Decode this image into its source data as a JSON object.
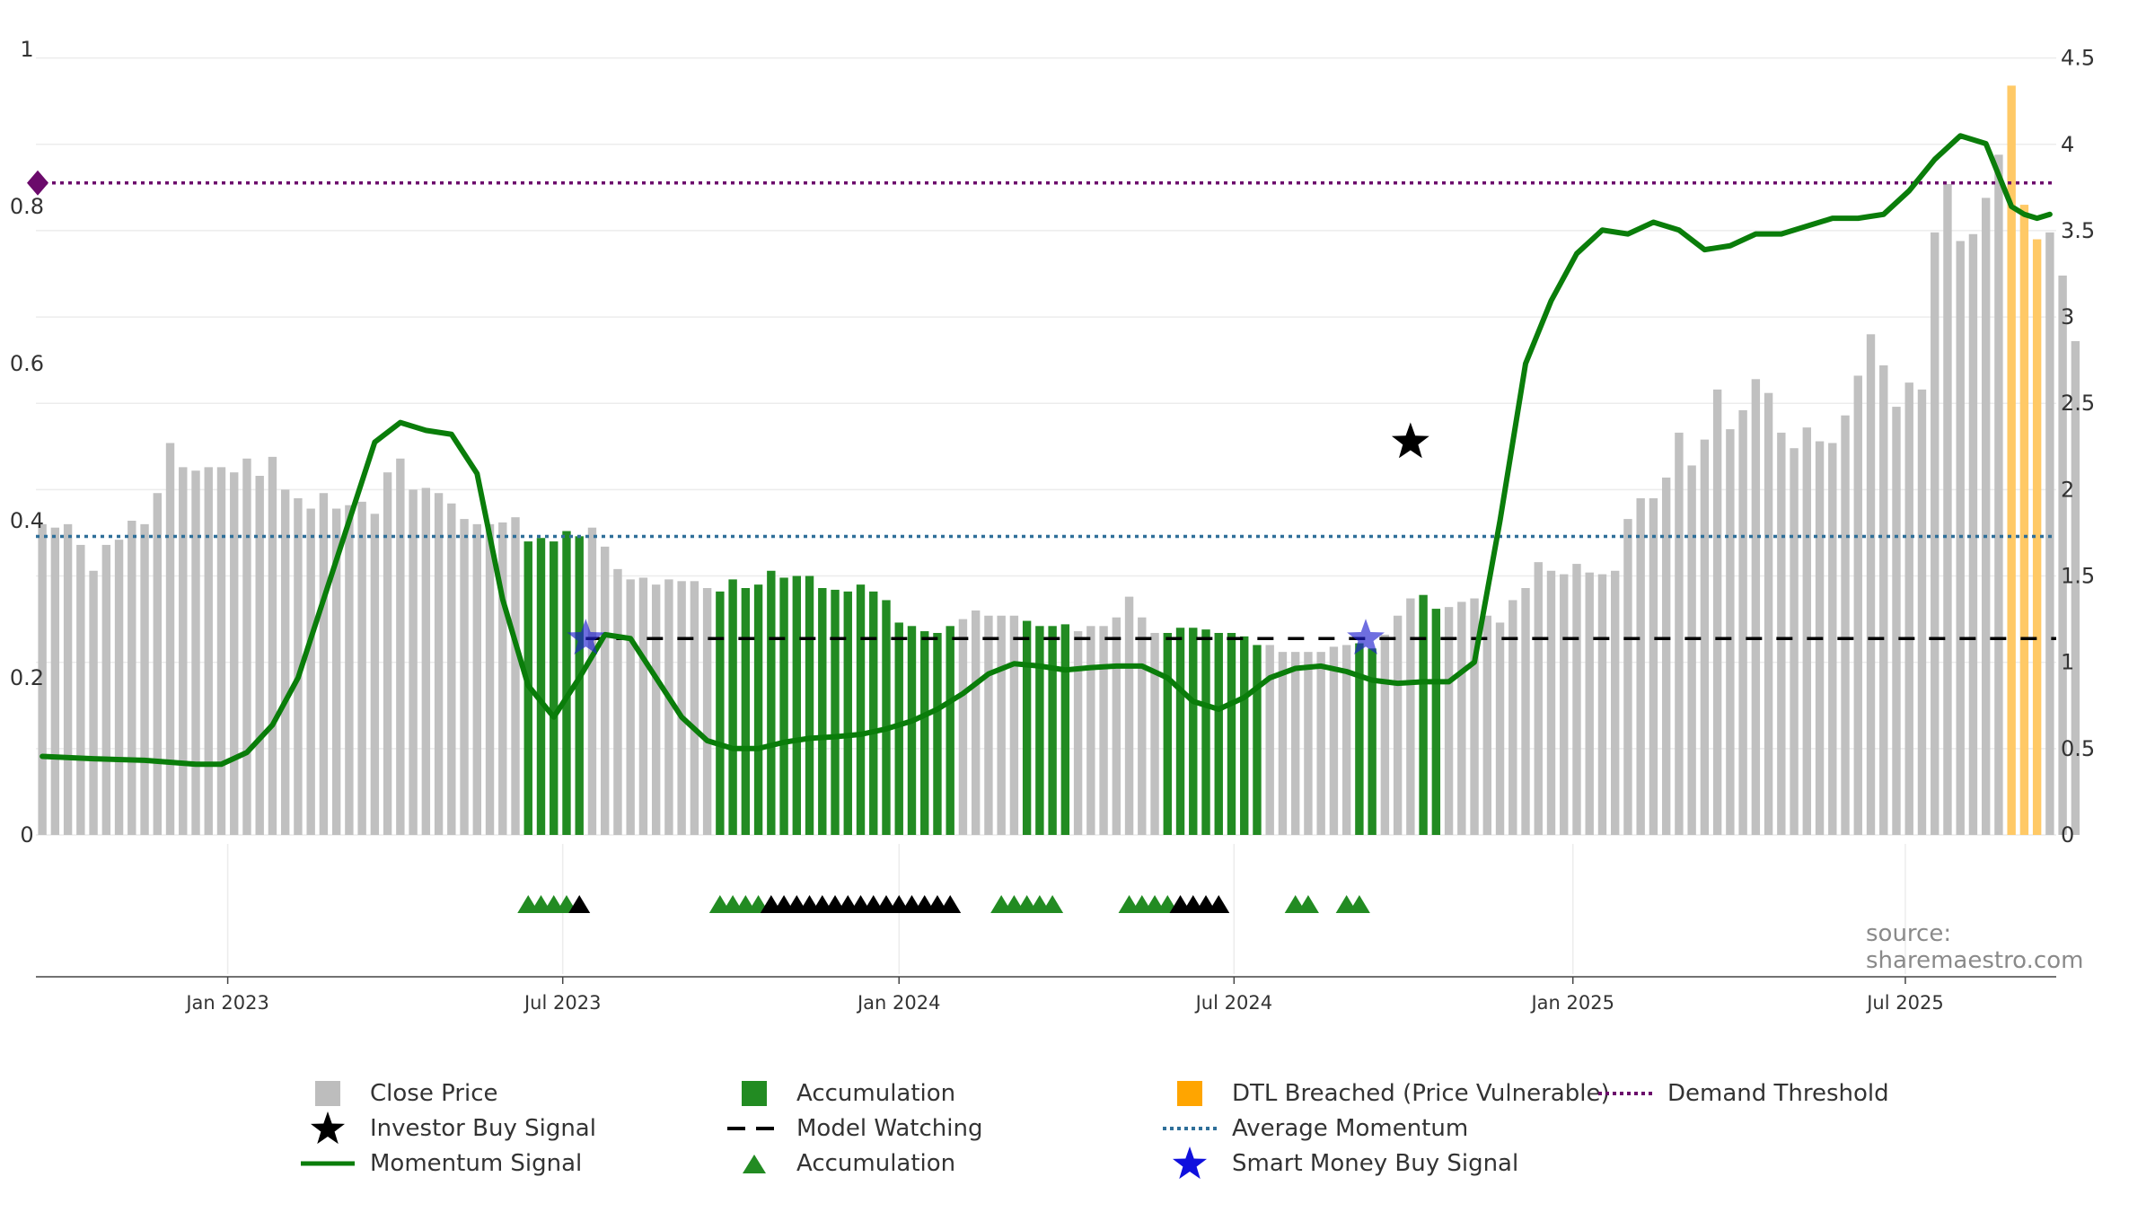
{
  "chart_data": {
    "type": "bar",
    "source_text": "source: sharemaestro.com",
    "x_tick_labels": [
      "Jan 2023",
      "Jul 2023",
      "Jan 2024",
      "Jul 2024",
      "Jan 2025",
      "Jul 2025"
    ],
    "x_tick_positions": [
      15.0,
      41.2,
      67.5,
      93.7,
      120.2,
      146.2
    ],
    "left_axis": {
      "ticks": [
        0,
        0.2,
        0.4,
        0.6,
        0.8,
        1
      ],
      "tick_labels": [
        "0",
        "0.2",
        "0.4",
        "0.6",
        "0.8",
        "1"
      ],
      "range": [
        0,
        1
      ]
    },
    "right_axis": {
      "ticks": [
        0,
        0.5,
        1,
        1.5,
        2,
        2.5,
        3,
        3.5,
        4,
        4.5
      ],
      "tick_labels": [
        "0",
        "0.5",
        "1",
        "1.5",
        "2",
        "2.5",
        "3",
        "3.5",
        "4",
        "4.5"
      ],
      "range": [
        0,
        4.55
      ]
    },
    "x_range": [
      0,
      158
    ],
    "price": [
      1.8,
      1.78,
      1.8,
      1.68,
      1.53,
      1.68,
      1.71,
      1.82,
      1.8,
      1.98,
      2.27,
      2.13,
      2.11,
      2.13,
      2.13,
      2.1,
      2.18,
      2.08,
      2.19,
      2.0,
      1.95,
      1.89,
      1.98,
      1.89,
      1.91,
      1.93,
      1.86,
      2.1,
      2.18,
      2.0,
      2.01,
      1.98,
      1.92,
      1.83,
      1.8,
      1.8,
      1.81,
      1.84,
      1.7,
      1.72,
      1.7,
      1.76,
      1.73,
      1.78,
      1.67,
      1.54,
      1.48,
      1.49,
      1.45,
      1.48,
      1.47,
      1.47,
      1.43,
      1.41,
      1.48,
      1.43,
      1.45,
      1.53,
      1.49,
      1.5,
      1.5,
      1.43,
      1.42,
      1.41,
      1.45,
      1.41,
      1.36,
      1.23,
      1.21,
      1.18,
      1.17,
      1.21,
      1.25,
      1.3,
      1.27,
      1.27,
      1.27,
      1.24,
      1.21,
      1.21,
      1.22,
      1.18,
      1.21,
      1.21,
      1.26,
      1.38,
      1.26,
      1.17,
      1.17,
      1.2,
      1.2,
      1.19,
      1.17,
      1.17,
      1.15,
      1.1,
      1.1,
      1.06,
      1.06,
      1.06,
      1.06,
      1.09,
      1.1,
      1.11,
      1.08,
      1.16,
      1.27,
      1.37,
      1.39,
      1.31,
      1.32,
      1.35,
      1.37,
      1.27,
      1.23,
      1.36,
      1.43,
      1.58,
      1.53,
      1.51,
      1.57,
      1.52,
      1.51,
      1.53,
      1.83,
      1.95,
      1.95,
      2.07,
      2.33,
      2.14,
      2.29,
      2.58,
      2.35,
      2.46,
      2.64,
      2.56,
      2.33,
      2.24,
      2.36,
      2.28,
      2.27,
      2.43,
      2.66,
      2.9,
      2.72,
      2.48,
      2.62,
      2.58,
      3.49,
      3.77,
      3.44,
      3.48,
      3.69,
      3.94,
      4.34,
      3.65,
      3.45,
      3.49,
      3.24,
      2.86
    ],
    "bar_state": [
      "none",
      "none",
      "none",
      "none",
      "none",
      "none",
      "none",
      "none",
      "none",
      "none",
      "none",
      "none",
      "none",
      "none",
      "none",
      "none",
      "none",
      "none",
      "none",
      "none",
      "none",
      "none",
      "none",
      "none",
      "none",
      "none",
      "none",
      "none",
      "none",
      "none",
      "none",
      "none",
      "none",
      "none",
      "none",
      "none",
      "none",
      "none",
      "accumulation",
      "accumulation",
      "accumulation",
      "accumulation",
      "accumulation",
      "none",
      "none",
      "none",
      "none",
      "none",
      "none",
      "none",
      "none",
      "none",
      "none",
      "accumulation",
      "accumulation",
      "accumulation",
      "accumulation",
      "accumulation",
      "accumulation",
      "accumulation",
      "accumulation",
      "accumulation",
      "accumulation",
      "accumulation",
      "accumulation",
      "accumulation",
      "accumulation",
      "accumulation",
      "accumulation",
      "accumulation",
      "accumulation",
      "accumulation",
      "none",
      "none",
      "none",
      "none",
      "none",
      "accumulation",
      "accumulation",
      "accumulation",
      "accumulation",
      "none",
      "none",
      "none",
      "none",
      "none",
      "none",
      "none",
      "accumulation",
      "accumulation",
      "accumulation",
      "accumulation",
      "accumulation",
      "accumulation",
      "accumulation",
      "accumulation",
      "none",
      "none",
      "none",
      "none",
      "none",
      "none",
      "none",
      "accumulation",
      "accumulation",
      "none",
      "none",
      "none",
      "accumulation",
      "accumulation",
      "none",
      "none",
      "none",
      "none",
      "none",
      "none",
      "none",
      "none",
      "none",
      "none",
      "none",
      "none",
      "none",
      "none",
      "none",
      "none",
      "none",
      "none",
      "none",
      "none",
      "none",
      "none",
      "none",
      "none",
      "none",
      "none",
      "none",
      "none",
      "none",
      "none",
      "none",
      "none",
      "none",
      "none",
      "none",
      "none",
      "none",
      "none",
      "none",
      "none",
      "none",
      "none",
      "none",
      "none",
      "dtl_breached",
      "dtl_breached",
      "dtl_breached",
      "none",
      "none",
      "none",
      "none"
    ],
    "momentum": {
      "x": [
        0,
        4,
        8,
        12,
        14,
        16,
        18,
        20,
        22,
        24,
        26,
        28,
        30,
        32,
        34,
        36,
        38,
        40,
        42,
        44,
        46,
        48,
        50,
        52,
        54,
        56,
        58,
        60,
        62,
        64,
        66,
        68,
        70,
        72,
        74,
        76,
        78,
        80,
        82,
        84,
        86,
        88,
        90,
        92,
        94,
        96,
        98,
        100,
        102,
        104,
        106,
        108,
        110,
        112,
        114,
        116,
        118,
        120,
        122,
        124,
        126,
        128,
        130,
        132,
        134,
        136,
        138,
        140,
        142,
        144,
        146,
        148,
        150,
        152,
        154,
        155,
        156,
        157
      ],
      "values": [
        0.1,
        0.097,
        0.095,
        0.09,
        0.09,
        0.105,
        0.14,
        0.2,
        0.3,
        0.4,
        0.5,
        0.525,
        0.515,
        0.51,
        0.46,
        0.3,
        0.19,
        0.15,
        0.2,
        0.255,
        0.25,
        0.2,
        0.15,
        0.12,
        0.11,
        0.11,
        0.118,
        0.123,
        0.125,
        0.128,
        0.135,
        0.145,
        0.16,
        0.18,
        0.205,
        0.218,
        0.215,
        0.21,
        0.213,
        0.215,
        0.215,
        0.2,
        0.17,
        0.16,
        0.175,
        0.2,
        0.212,
        0.215,
        0.208,
        0.197,
        0.193,
        0.195,
        0.195,
        0.22,
        0.4,
        0.6,
        0.68,
        0.74,
        0.77,
        0.765,
        0.78,
        0.77,
        0.745,
        0.75,
        0.765,
        0.765,
        0.775,
        0.785,
        0.785,
        0.79,
        0.82,
        0.86,
        0.89,
        0.88,
        0.8,
        0.79,
        0.785,
        0.79
      ]
    },
    "average_momentum": 0.38,
    "demand_threshold": 0.83,
    "model_watching": {
      "value": 0.25,
      "from_x": 43,
      "to_x": 158
    },
    "investor_buy_signal": {
      "x": 107.5,
      "value": 0.5
    },
    "smart_money_buy_signal": [
      {
        "x": 43,
        "value": 0.25
      },
      {
        "x": 104,
        "value": 0.25
      }
    ],
    "accumulation_markers": [
      {
        "x": 38.5,
        "color": "green"
      },
      {
        "x": 39.5,
        "color": "green"
      },
      {
        "x": 40.5,
        "color": "green"
      },
      {
        "x": 41.5,
        "color": "green"
      },
      {
        "x": 42.5,
        "color": "black"
      },
      {
        "x": 53.5,
        "color": "green"
      },
      {
        "x": 54.5,
        "color": "green"
      },
      {
        "x": 55.5,
        "color": "green"
      },
      {
        "x": 56.5,
        "color": "green"
      },
      {
        "x": 57.5,
        "color": "black"
      },
      {
        "x": 58.5,
        "color": "black"
      },
      {
        "x": 59.5,
        "color": "black"
      },
      {
        "x": 60.5,
        "color": "black"
      },
      {
        "x": 61.5,
        "color": "black"
      },
      {
        "x": 62.5,
        "color": "black"
      },
      {
        "x": 63.5,
        "color": "black"
      },
      {
        "x": 64.5,
        "color": "black"
      },
      {
        "x": 65.5,
        "color": "black"
      },
      {
        "x": 66.5,
        "color": "black"
      },
      {
        "x": 67.5,
        "color": "black"
      },
      {
        "x": 68.5,
        "color": "black"
      },
      {
        "x": 69.5,
        "color": "black"
      },
      {
        "x": 70.5,
        "color": "black"
      },
      {
        "x": 71.5,
        "color": "black"
      },
      {
        "x": 75.5,
        "color": "green"
      },
      {
        "x": 76.5,
        "color": "green"
      },
      {
        "x": 77.5,
        "color": "green"
      },
      {
        "x": 78.5,
        "color": "green"
      },
      {
        "x": 79.5,
        "color": "green"
      },
      {
        "x": 85.5,
        "color": "green"
      },
      {
        "x": 86.5,
        "color": "green"
      },
      {
        "x": 87.5,
        "color": "green"
      },
      {
        "x": 88.5,
        "color": "green"
      },
      {
        "x": 89.5,
        "color": "black"
      },
      {
        "x": 90.5,
        "color": "black"
      },
      {
        "x": 91.5,
        "color": "black"
      },
      {
        "x": 92.5,
        "color": "black"
      },
      {
        "x": 98.5,
        "color": "green"
      },
      {
        "x": 99.5,
        "color": "green"
      },
      {
        "x": 102.5,
        "color": "green"
      },
      {
        "x": 103.5,
        "color": "green"
      }
    ],
    "colors": {
      "close_price": "#c0c0c0",
      "accumulation": "#228B22",
      "dtl_breached": "#ffc966",
      "momentum": "#0a7d0a",
      "average_momentum": "#2f6f99",
      "demand_threshold": "#6b0a6b",
      "model_watching": "#000000",
      "smart_money": "#2020d0",
      "investor": "#000000"
    },
    "legend": [
      {
        "key": "close_price",
        "label": "Close Price",
        "symbol": "square",
        "color": "#bdbdbd"
      },
      {
        "key": "investor_buy_signal",
        "label": "Investor Buy Signal",
        "symbol": "star",
        "color": "#000000"
      },
      {
        "key": "momentum",
        "label": "Momentum Signal",
        "symbol": "line",
        "color": "#0a7d0a"
      },
      {
        "key": "accumulation_bar",
        "label": "Accumulation",
        "symbol": "square",
        "color": "#228B22"
      },
      {
        "key": "model_watching",
        "label": "Model Watching",
        "symbol": "dash",
        "color": "#000000"
      },
      {
        "key": "accumulation_marker",
        "label": "Accumulation",
        "symbol": "triangle",
        "color": "#228B22"
      },
      {
        "key": "dtl_breached",
        "label": "DTL Breached (Price Vulnerable)",
        "symbol": "square",
        "color": "#ffa500"
      },
      {
        "key": "average_momentum",
        "label": "Average Momentum",
        "symbol": "dotted",
        "color": "#2f6f99"
      },
      {
        "key": "smart_money",
        "label": "Smart Money Buy Signal",
        "symbol": "star",
        "color": "#1010dd"
      },
      {
        "key": "demand_threshold",
        "label": "Demand Threshold",
        "symbol": "dotted",
        "color": "#6b0a6b"
      }
    ]
  }
}
